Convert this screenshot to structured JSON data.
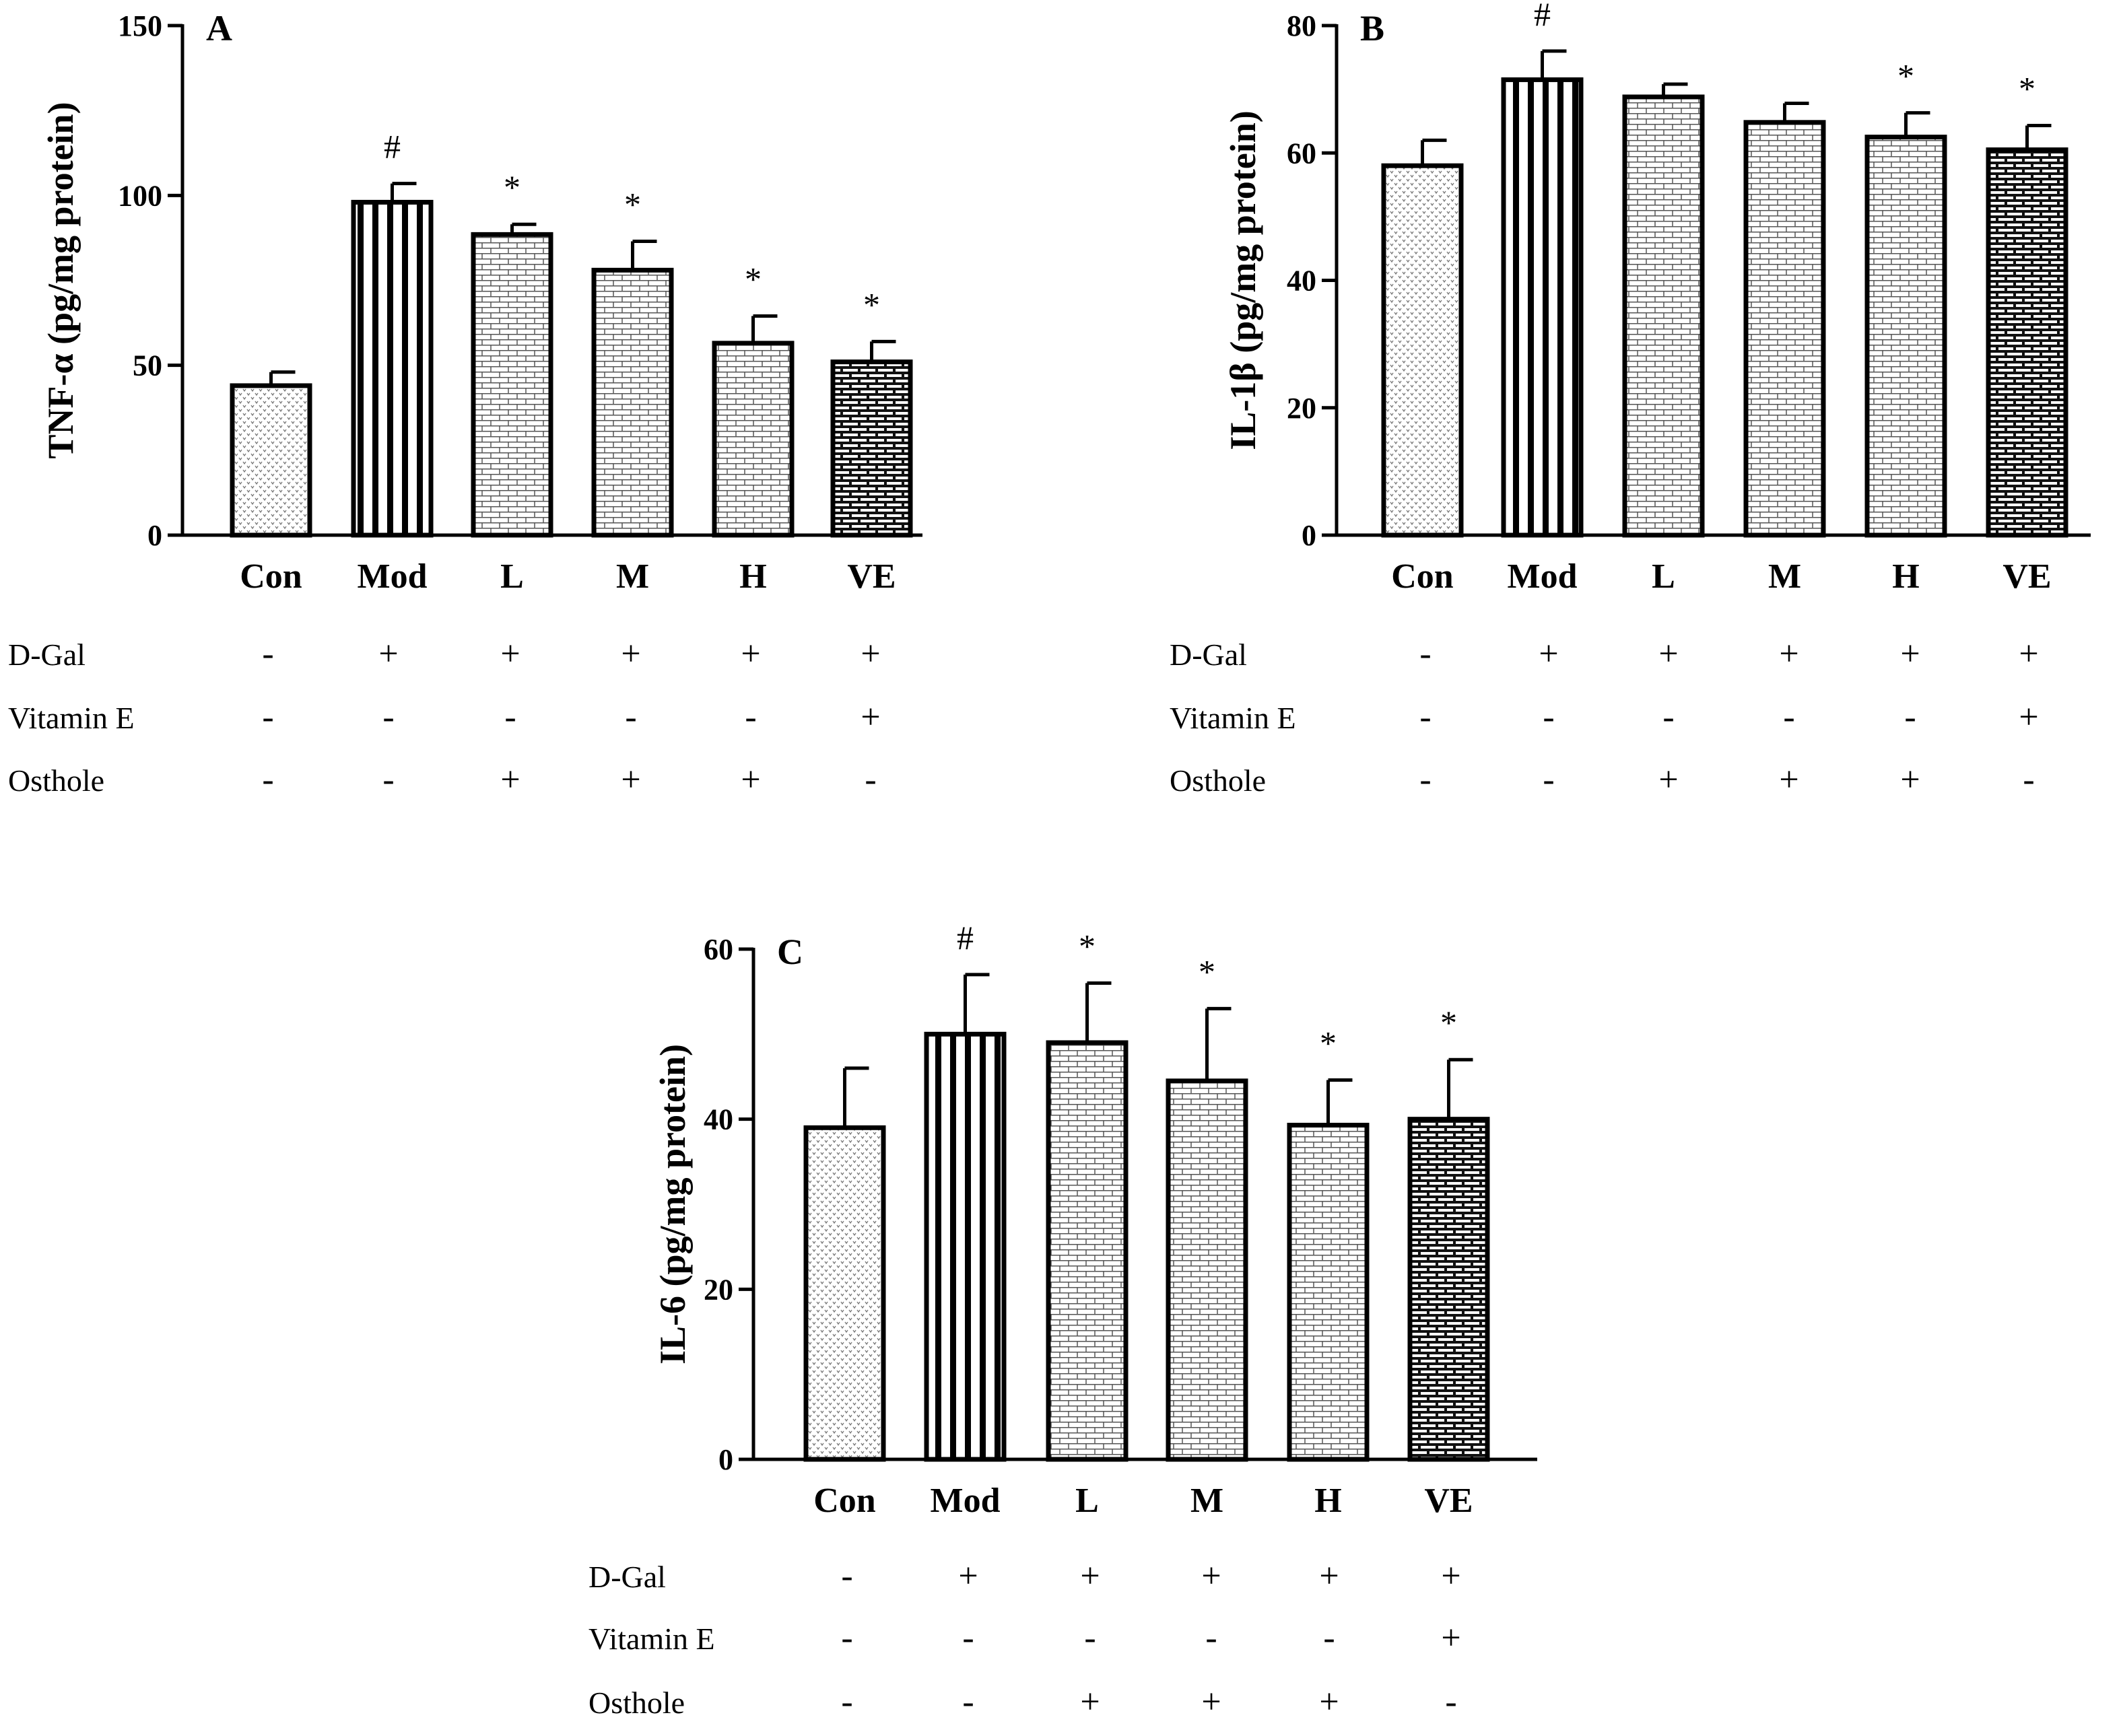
{
  "chart_data": [
    {
      "type": "bar",
      "panel_label": "A",
      "ylabel": "TNF-α (pg/mg protein)",
      "ylim": [
        0,
        150
      ],
      "yticks": [
        0,
        50,
        100,
        150
      ],
      "categories": [
        "Con",
        "Mod",
        "L",
        "M",
        "H",
        "VE"
      ],
      "values": [
        44,
        98,
        88.5,
        78,
        56.5,
        51
      ],
      "errors": [
        4,
        5.5,
        3,
        8.5,
        8,
        6
      ],
      "annotations": [
        "",
        "#",
        "*",
        "*",
        "*",
        "*"
      ],
      "patterns": [
        "dots",
        "vlines",
        "brick-light",
        "brick-light",
        "brick-light",
        "brick-dark"
      ],
      "treatments": [
        {
          "label": "D-Gal",
          "marks": [
            "-",
            "+",
            "+",
            "+",
            "+",
            "+"
          ]
        },
        {
          "label": "Vitamin E",
          "marks": [
            "-",
            "-",
            "-",
            "-",
            "-",
            "+"
          ]
        },
        {
          "label": "Osthole",
          "marks": [
            "-",
            "-",
            "+",
            "+",
            "+",
            "-"
          ]
        }
      ]
    },
    {
      "type": "bar",
      "panel_label": "B",
      "ylabel": "IL-1β (pg/mg protein)",
      "ylim": [
        0,
        80
      ],
      "yticks": [
        0,
        20,
        40,
        60,
        80
      ],
      "categories": [
        "Con",
        "Mod",
        "L",
        "M",
        "H",
        "VE"
      ],
      "values": [
        58,
        71.5,
        68.8,
        64.8,
        62.5,
        60.5
      ],
      "errors": [
        4,
        4.5,
        2,
        3,
        3.8,
        3.8
      ],
      "annotations": [
        "",
        "#",
        "",
        "",
        "*",
        "*"
      ],
      "patterns": [
        "dots",
        "vlines",
        "brick-light",
        "brick-light",
        "brick-light",
        "brick-dark"
      ],
      "treatments": [
        {
          "label": "D-Gal",
          "marks": [
            "-",
            "+",
            "+",
            "+",
            "+",
            "+"
          ]
        },
        {
          "label": "Vitamin E",
          "marks": [
            "-",
            "-",
            "-",
            "-",
            "-",
            "+"
          ]
        },
        {
          "label": "Osthole",
          "marks": [
            "-",
            "-",
            "+",
            "+",
            "+",
            "-"
          ]
        }
      ]
    },
    {
      "type": "bar",
      "panel_label": "C",
      "ylabel": "IL-6 (pg/mg protein)",
      "ylim": [
        0,
        60
      ],
      "yticks": [
        0,
        20,
        40,
        60
      ],
      "categories": [
        "Con",
        "Mod",
        "L",
        "M",
        "H",
        "VE"
      ],
      "values": [
        39,
        50,
        49,
        44.5,
        39.3,
        40
      ],
      "errors": [
        7,
        7,
        7,
        8.5,
        5.3,
        7
      ],
      "annotations": [
        "",
        "#",
        "*",
        "*",
        "*",
        "*"
      ],
      "patterns": [
        "dots",
        "vlines",
        "brick-light",
        "brick-light",
        "brick-light",
        "brick-dark"
      ],
      "treatments": [
        {
          "label": "D-Gal",
          "marks": [
            "-",
            "+",
            "+",
            "+",
            "+",
            "+"
          ]
        },
        {
          "label": "Vitamin E",
          "marks": [
            "-",
            "-",
            "-",
            "-",
            "-",
            "+"
          ]
        },
        {
          "label": "Osthole",
          "marks": [
            "-",
            "-",
            "+",
            "+",
            "+",
            "-"
          ]
        }
      ]
    }
  ]
}
